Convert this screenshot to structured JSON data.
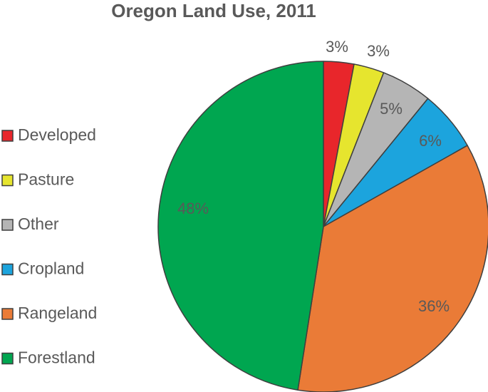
{
  "chart_data": {
    "type": "pie",
    "title": "Oregon Land Use, 2011",
    "start_angle_deg": 0,
    "direction": "clockwise",
    "legend_position": "left",
    "slices": [
      {
        "label": "Developed",
        "value": 3,
        "display": "3%",
        "color": "#e8262b"
      },
      {
        "label": "Pasture",
        "value": 3,
        "display": "3%",
        "color": "#e6e52e"
      },
      {
        "label": "Other",
        "value": 5,
        "display": "5%",
        "color": "#b5b5b5"
      },
      {
        "label": "Cropland",
        "value": 6,
        "display": "6%",
        "color": "#1ca4dd"
      },
      {
        "label": "Rangeland",
        "value": 36,
        "display": "36%",
        "color": "#ea7b37"
      },
      {
        "label": "Forestland",
        "value": 48,
        "display": "48%",
        "color": "#00a650"
      }
    ]
  }
}
